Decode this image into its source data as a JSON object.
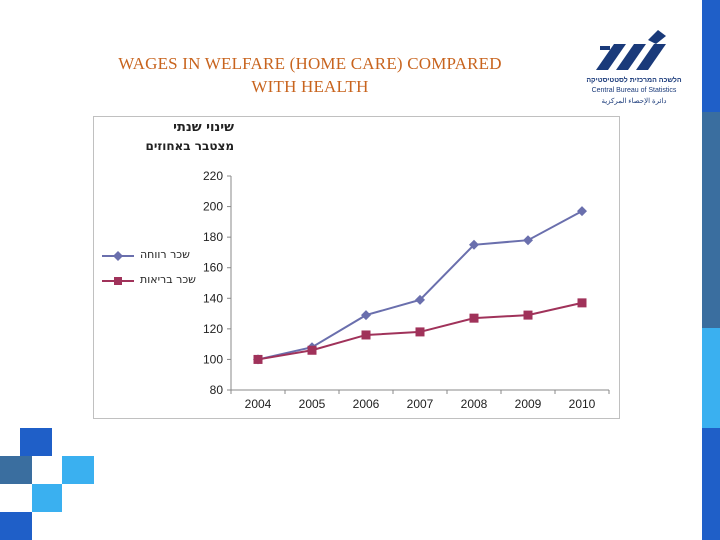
{
  "slide": {
    "title_line1": "WAGES IN WELFARE (HOME CARE) COMPARED",
    "title_line2": "WITH HEALTH"
  },
  "logo": {
    "hebrew": "הלשכה המרכזית לסטטיסטיקה",
    "english": "Central Bureau of Statistics",
    "arabic": "دائرة الإحصاء المركزية",
    "color": "#1a3a7a"
  },
  "colors": {
    "title": "#c8641e",
    "series_welfare": "#6a6fad",
    "series_health": "#a0325a",
    "deco_blue": "#1f5fc8",
    "deco_steel": "#3a6e9f",
    "deco_light": "#3ab0f0"
  },
  "chart_data": {
    "type": "line",
    "title": "שינוי שנתי",
    "subtitle": "מצטבר באחוזים",
    "xlabel": "",
    "ylabel": "",
    "x": [
      "2004",
      "2005",
      "2006",
      "2007",
      "2008",
      "2009",
      "2010"
    ],
    "ylim": [
      80,
      220
    ],
    "yticks": [
      80,
      100,
      120,
      140,
      160,
      180,
      200,
      220
    ],
    "grid": false,
    "legend": "left",
    "series": [
      {
        "name": "שכר רווחה",
        "marker": "diamond",
        "values": [
          100,
          108,
          129,
          139,
          175,
          178,
          197
        ]
      },
      {
        "name": "שכר בריאות",
        "marker": "square",
        "values": [
          100,
          106,
          116,
          118,
          127,
          129,
          137
        ]
      }
    ]
  }
}
